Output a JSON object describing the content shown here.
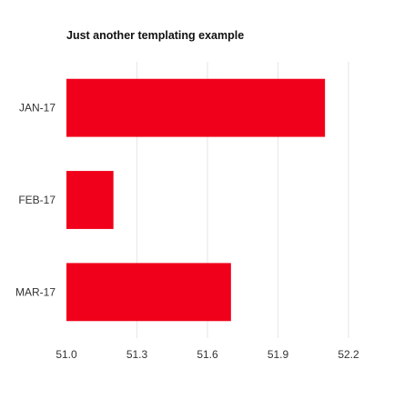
{
  "chart_data": {
    "type": "bar",
    "orientation": "horizontal",
    "title": "Just another templating example",
    "categories": [
      "JAN-17",
      "FEB-17",
      "MAR-17"
    ],
    "values": [
      52.1,
      51.2,
      51.7
    ],
    "xlim": [
      51.0,
      52.2
    ],
    "xticks": [
      "51.0",
      "51.3",
      "51.6",
      "51.9",
      "52.2"
    ],
    "xlabel": "",
    "ylabel": "",
    "grid": true,
    "legend": "none",
    "bar_color": "#f0001a"
  }
}
